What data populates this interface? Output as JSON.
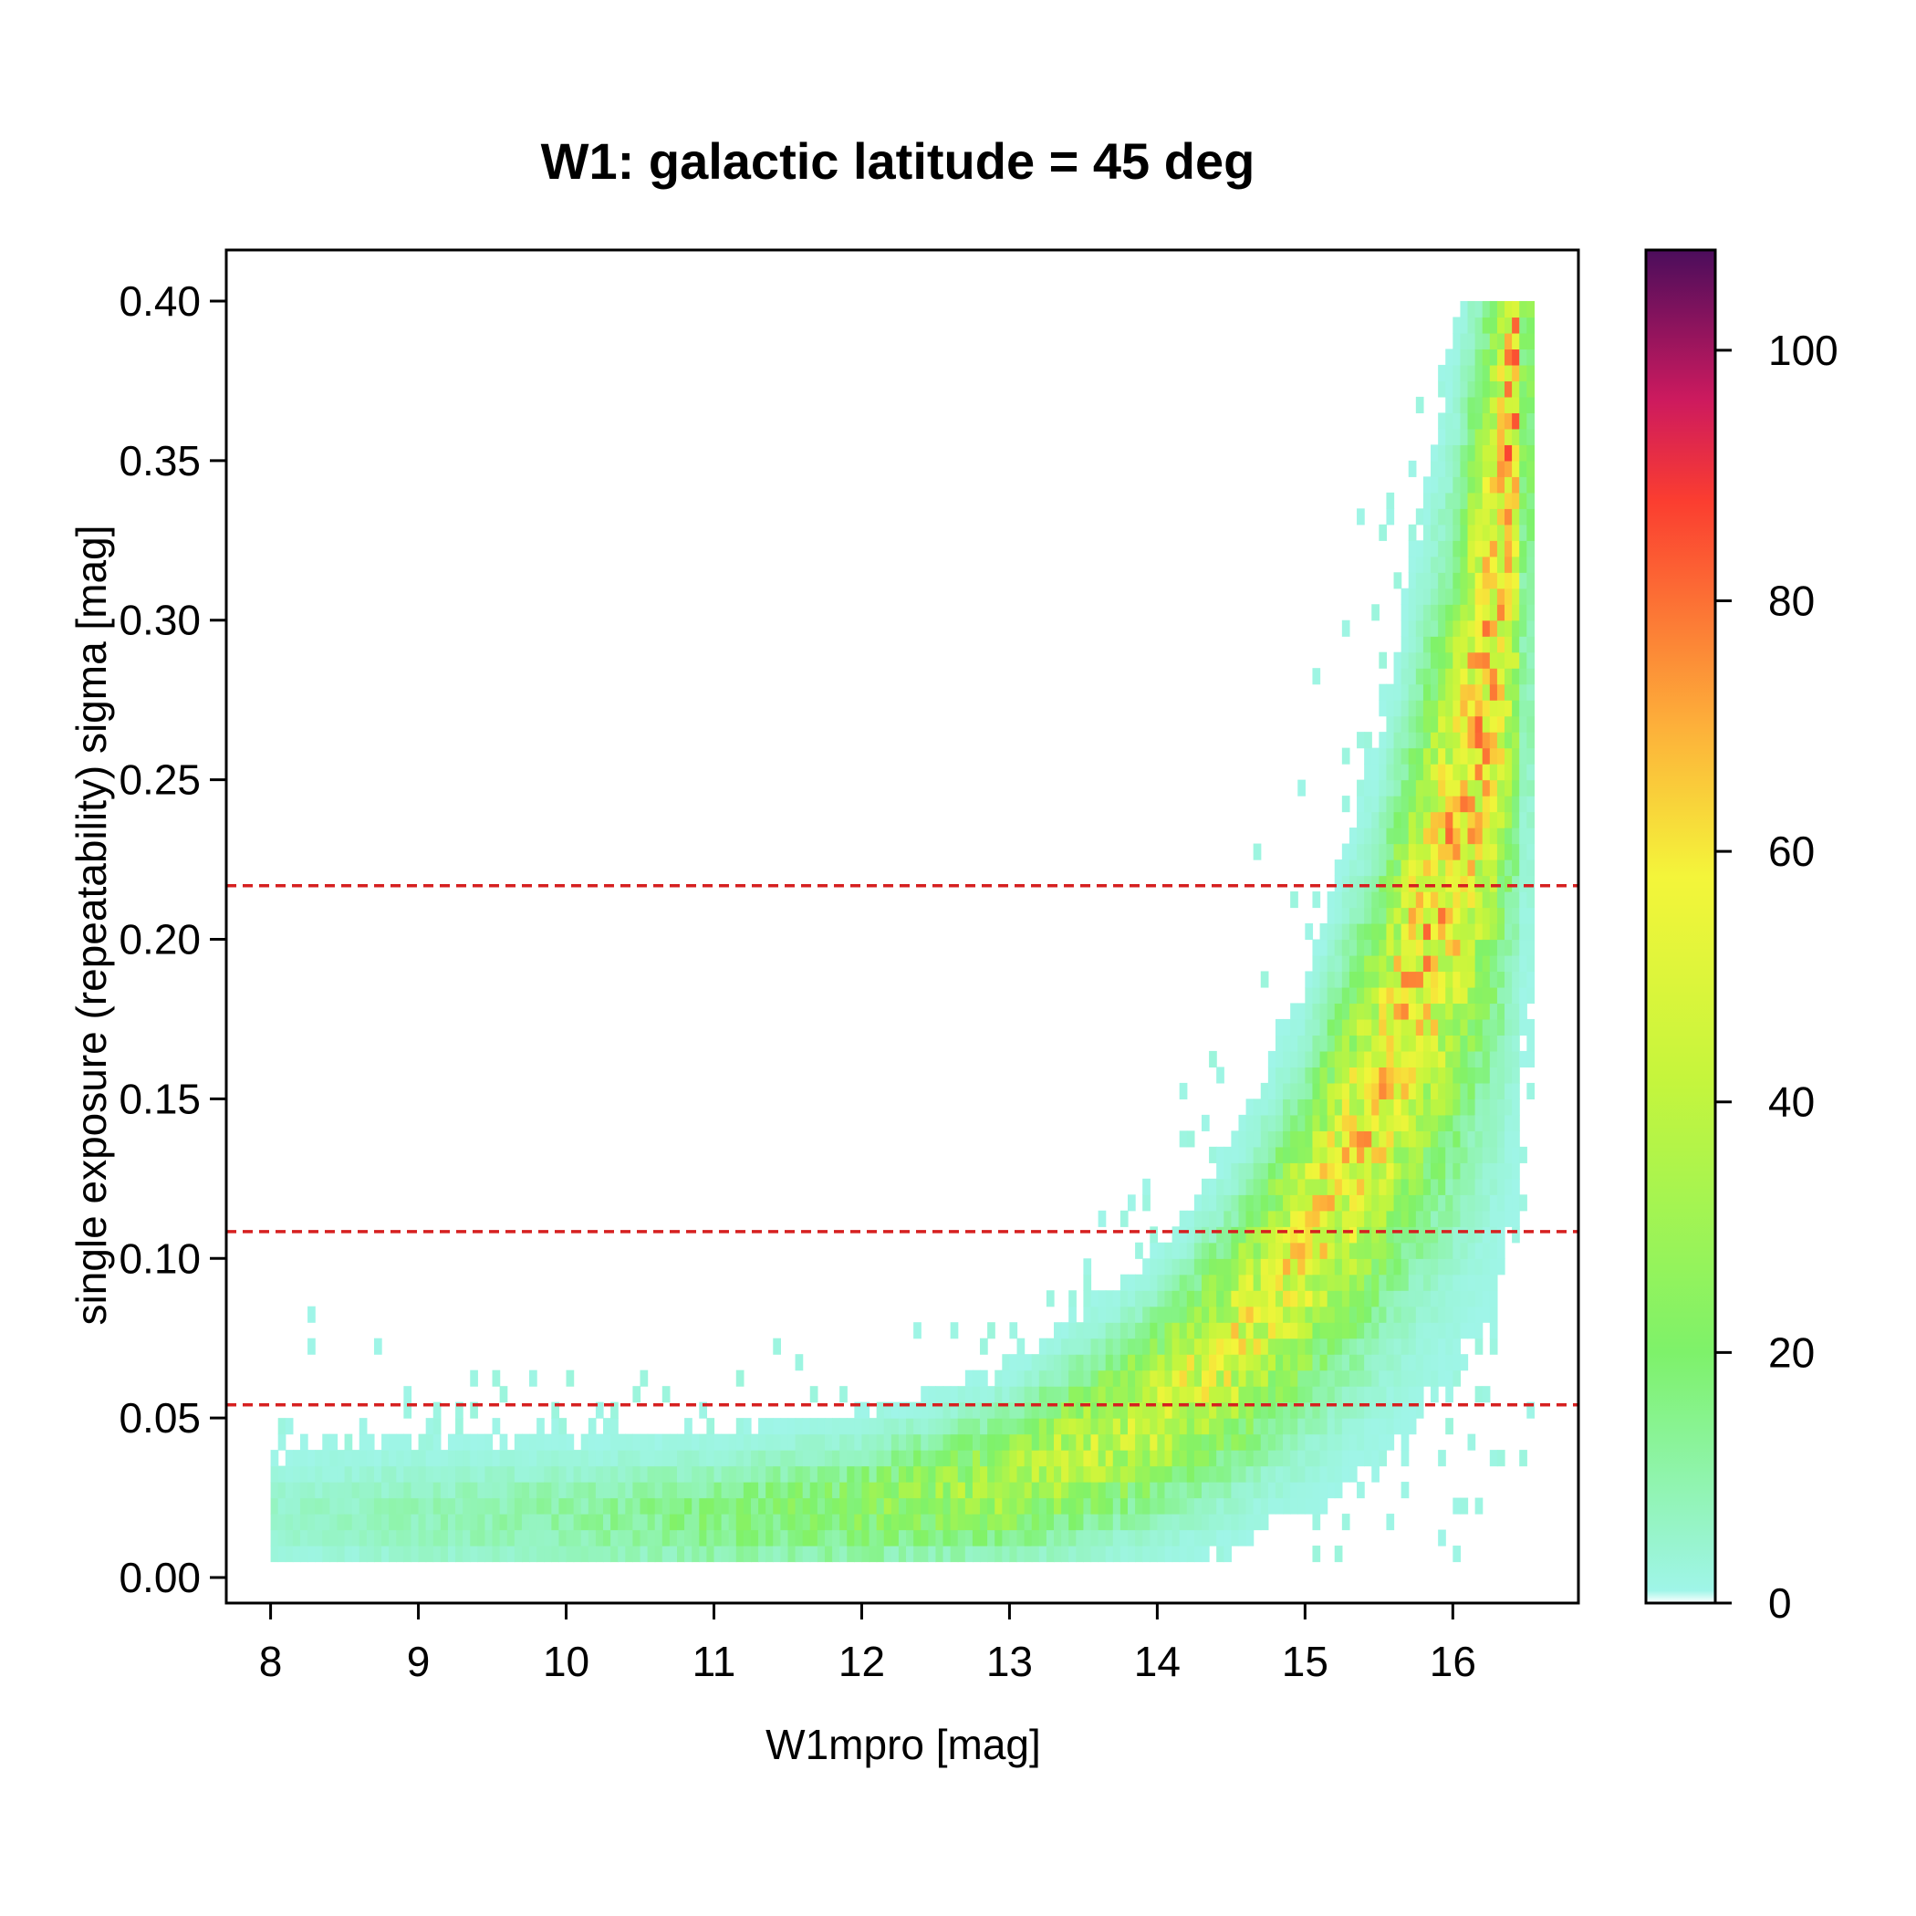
{
  "chart_data": {
    "type": "heatmap",
    "title": "W1: galactic latitude = 45 deg",
    "xlabel": "W1mpro [mag]",
    "ylabel": "single exposure (repeatability) sigma [mag]",
    "xlim": [
      7.7,
      16.85
    ],
    "ylim": [
      -0.008,
      0.416
    ],
    "x_ticks": [
      8,
      9,
      10,
      11,
      12,
      13,
      14,
      15,
      16
    ],
    "x_tick_labels": [
      "8",
      "9",
      "10",
      "11",
      "12",
      "13",
      "14",
      "15",
      "16"
    ],
    "y_ticks": [
      0.0,
      0.05,
      0.1,
      0.15,
      0.2,
      0.25,
      0.3,
      0.35,
      0.4
    ],
    "y_tick_labels": [
      "0.00",
      "0.05",
      "0.10",
      "0.15",
      "0.20",
      "0.25",
      "0.30",
      "0.35",
      "0.40"
    ],
    "bin_size": {
      "x": 0.05,
      "y": 0.005
    },
    "x_data_range": [
      8.0,
      16.55
    ],
    "y_data_range": [
      0.005,
      0.4
    ],
    "ridge_points": [
      {
        "x": 8.2,
        "y": 0.02
      },
      {
        "x": 10.0,
        "y": 0.019
      },
      {
        "x": 11.0,
        "y": 0.019
      },
      {
        "x": 12.0,
        "y": 0.022
      },
      {
        "x": 13.0,
        "y": 0.03
      },
      {
        "x": 14.0,
        "y": 0.052
      },
      {
        "x": 14.5,
        "y": 0.072
      },
      {
        "x": 15.0,
        "y": 0.103
      },
      {
        "x": 15.5,
        "y": 0.15
      },
      {
        "x": 16.0,
        "y": 0.225
      },
      {
        "x": 16.3,
        "y": 0.3
      },
      {
        "x": 16.45,
        "y": 0.4
      }
    ],
    "peak_count": 108,
    "reference_lines": [
      {
        "y": 0.0541,
        "color": "#d62020",
        "style": "dashed"
      },
      {
        "y": 0.1084,
        "color": "#d62020",
        "style": "dashed"
      },
      {
        "y": 0.2168,
        "color": "#d62020",
        "style": "dashed"
      }
    ],
    "colorbar": {
      "min": 0,
      "max": 108,
      "ticks": [
        0,
        20,
        40,
        60,
        80,
        100
      ],
      "tick_labels": [
        "0",
        "20",
        "40",
        "60",
        "80",
        "100"
      ],
      "stops": [
        {
          "value": 0,
          "color": "#ffffff"
        },
        {
          "value": 1,
          "color": "#9ff5e8"
        },
        {
          "value": 20,
          "color": "#7ef26a"
        },
        {
          "value": 42,
          "color": "#c6f53c"
        },
        {
          "value": 58,
          "color": "#f4f53a"
        },
        {
          "value": 70,
          "color": "#fdb03a"
        },
        {
          "value": 88,
          "color": "#fb3d30"
        },
        {
          "value": 96,
          "color": "#cd1a5e"
        },
        {
          "value": 108,
          "color": "#4b0d5c"
        }
      ]
    }
  }
}
